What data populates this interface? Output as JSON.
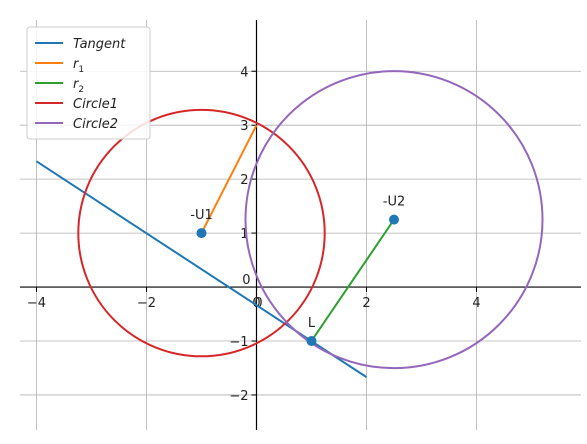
{
  "chart_data": {
    "type": "line",
    "title": "",
    "xlabel": "",
    "ylabel": "",
    "xlim": [
      -4.3,
      5.9
    ],
    "ylim": [
      -2.65,
      4.95
    ],
    "grid": true,
    "legend_position": "top-left",
    "xticks": [
      -4,
      -2,
      0,
      2,
      4
    ],
    "yticks": [
      -2,
      -1,
      1,
      2,
      3,
      4
    ],
    "series": [
      {
        "name": "Tangent",
        "color": "#1f77b4",
        "kind": "line",
        "x": [
          -4,
          2
        ],
        "y": [
          2.33,
          -1.67
        ]
      },
      {
        "name": "r",
        "subscript": "1",
        "color": "#ff7f0e",
        "kind": "line",
        "x": [
          -1,
          0
        ],
        "y": [
          1,
          3
        ]
      },
      {
        "name": "r",
        "subscript": "2",
        "color": "#2ca02c",
        "kind": "line",
        "x": [
          1,
          2.5
        ],
        "y": [
          -1,
          1.25
        ]
      },
      {
        "name": "Circle",
        "subscript_plain": "1",
        "color": "#d62728",
        "kind": "circle",
        "center": [
          -1,
          1
        ],
        "radius": 2.24
      },
      {
        "name": "Circle",
        "subscript_plain": "2",
        "color": "#9467bd",
        "kind": "circle",
        "center": [
          2.5,
          1.25
        ],
        "radius": 2.7
      }
    ],
    "points": [
      {
        "label": "-U1",
        "x": -1,
        "y": 1
      },
      {
        "label": "-U2",
        "x": 2.5,
        "y": 1.25
      },
      {
        "label": "L",
        "x": 1,
        "y": -1
      }
    ],
    "point_color": "#1f77b4"
  }
}
